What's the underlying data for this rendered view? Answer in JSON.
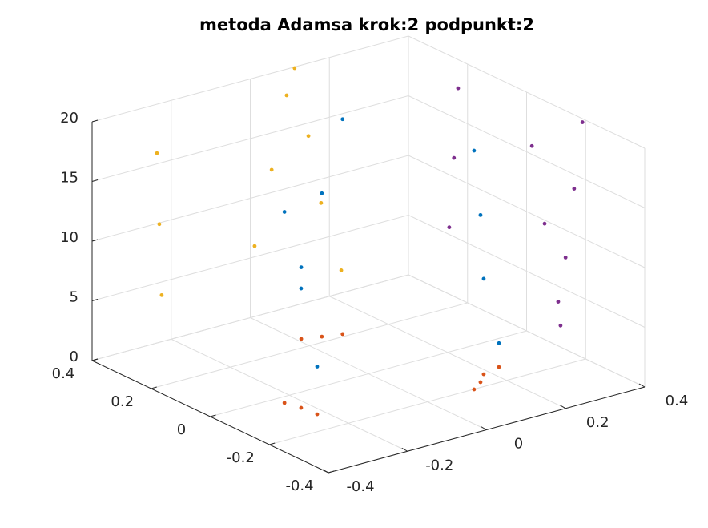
{
  "chart_data": {
    "type": "scatter3",
    "title": "metoda Adamsa krok:2 podpunkt:2",
    "xlim": [
      -0.4,
      0.4
    ],
    "ylim": [
      -0.4,
      0.4
    ],
    "zlim": [
      0,
      20
    ],
    "xticks": [
      -0.4,
      -0.2,
      0,
      0.2,
      0.4
    ],
    "yticks": [
      -0.4,
      -0.2,
      0,
      0.2,
      0.4
    ],
    "zticks": [
      0,
      5,
      10,
      15,
      20
    ],
    "grid": true,
    "series": [
      {
        "color": "#0072bd",
        "x": [
          -0.234,
          -0.224,
          -0.22,
          0.01,
          0.051,
          0.093,
          0.117,
          0.152,
          0.184,
          0.233
        ],
        "y": [
          -0.029,
          -0.072,
          -0.121,
          0.241,
          0.226,
          0.212,
          -0.201,
          -0.176,
          -0.144,
          -0.13
        ],
        "z": [
          16,
          10,
          4,
          6,
          12,
          18,
          20,
          14,
          8,
          2
        ]
      },
      {
        "color": "#d95319",
        "x": [
          -0.234,
          -0.224,
          -0.22,
          0.01,
          0.051,
          0.093,
          0.117,
          0.152,
          0.184,
          0.233
        ],
        "y": [
          -0.029,
          -0.072,
          -0.121,
          0.241,
          0.226,
          0.212,
          -0.201,
          -0.176,
          -0.144,
          -0.13
        ],
        "z": [
          0,
          0,
          0,
          0,
          0,
          0,
          0,
          0,
          0,
          0
        ]
      },
      {
        "color": "#edb120",
        "x": [
          -0.236,
          -0.23,
          -0.224,
          0.011,
          0.054,
          0.092,
          0.112,
          0.147,
          0.179,
          0.23
        ],
        "y": [
          0.4,
          0.4,
          0.4,
          0.4,
          0.4,
          0.4,
          0.4,
          0.4,
          0.4,
          0.4
        ],
        "z": [
          15.9,
          9.9,
          3.9,
          5.9,
          11.9,
          17.8,
          19.9,
          13.9,
          8.0,
          1.9
        ]
      },
      {
        "color": "#7e2f8e",
        "x": [
          0.4,
          0.4,
          0.4,
          0.4,
          0.4,
          0.4,
          0.4,
          0.4,
          0.4,
          0.4
        ],
        "y": [
          0.262,
          0.246,
          0.232,
          -0.018,
          -0.061,
          -0.107,
          -0.115,
          -0.132,
          -0.161,
          -0.189
        ],
        "z": [
          5.6,
          11.6,
          17.6,
          15.7,
          9.7,
          3.7,
          1.8,
          7.7,
          13.8,
          19.7
        ]
      }
    ]
  }
}
